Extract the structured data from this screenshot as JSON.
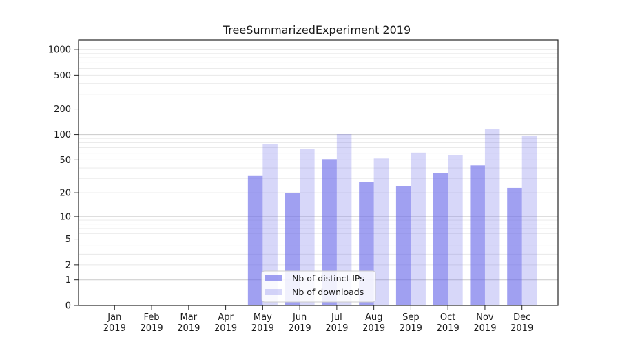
{
  "title": "TreeSummarizedExperiment 2019",
  "chart_data": {
    "type": "bar",
    "title": "TreeSummarizedExperiment 2019",
    "y_scale": "log1p",
    "ylim": [
      0,
      1300
    ],
    "grid": true,
    "legend_position": "lower center",
    "categories": [
      "Jan 2019",
      "Feb 2019",
      "Mar 2019",
      "Apr 2019",
      "May 2019",
      "Jun 2019",
      "Jul 2019",
      "Aug 2019",
      "Sep 2019",
      "Oct 2019",
      "Nov 2019",
      "Dec 2019"
    ],
    "x_tick_months": [
      "Jan",
      "Feb",
      "Mar",
      "Apr",
      "May",
      "Jun",
      "Jul",
      "Aug",
      "Sep",
      "Oct",
      "Nov",
      "Dec"
    ],
    "x_tick_year": "2019",
    "yticks": [
      0,
      1,
      2,
      5,
      10,
      20,
      50,
      100,
      200,
      500,
      1000
    ],
    "ytick_labels": [
      "0",
      "1",
      "2",
      "5",
      "10",
      "20",
      "50",
      "100",
      "200",
      "500",
      "1000"
    ],
    "minor_gridlines": [
      2,
      3,
      4,
      5,
      6,
      7,
      8,
      9,
      20,
      30,
      40,
      50,
      60,
      70,
      80,
      90,
      200,
      300,
      400,
      500,
      600,
      700,
      800,
      900
    ],
    "major_gridlines": [
      1,
      10,
      100,
      1000
    ],
    "series": [
      {
        "name": "Nb of distinct IPs",
        "color": "#6666e8",
        "opacity": 0.62,
        "values": [
          0,
          0,
          0,
          0,
          32,
          20,
          51,
          27,
          24,
          35,
          43,
          23
        ]
      },
      {
        "name": "Nb of downloads",
        "color": "#6666e8",
        "opacity": 0.26,
        "values": [
          0,
          0,
          0,
          0,
          77,
          67,
          101,
          52,
          61,
          57,
          116,
          96
        ]
      }
    ]
  },
  "legend": {
    "items": [
      "Nb of distinct IPs",
      "Nb of downloads"
    ]
  },
  "colors": {
    "bar_base": "#6666e8",
    "grid_major": "#c9c9c9",
    "grid_minor": "#e8e8e8",
    "axis": "#262626",
    "legend_border": "#cccccc",
    "legend_bg": "#ffffff"
  }
}
